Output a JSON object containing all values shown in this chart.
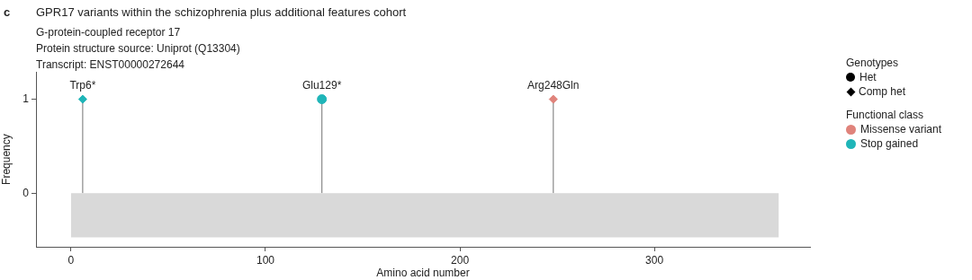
{
  "chart_data": {
    "type": "lollipop",
    "title": "GPR17 variants within the schizophrenia plus additional features cohort",
    "subtitle": "G-protein-coupled receptor 17\nProtein structure source: Uniprot (Q13304)\nTranscript: ENST00000272644",
    "xlabel": "Amino acid number",
    "ylabel": "Frequency",
    "legend_title": "Functional class",
    "legend": "right",
    "xlim": [
      -18,
      380
    ],
    "xticks": [
      0,
      100,
      200,
      300
    ],
    "ylim": [
      -0.57,
      1.29
    ],
    "yticks": [
      0,
      1
    ],
    "series": [
      {
        "type": "area",
        "color": "#d9d9d9",
        "x": [
          0,
          364
        ],
        "values": [
          -0.47,
          -0.47
        ]
      },
      {
        "name": "Missense variant",
        "color": "#e0837b",
        "marker": "diamond",
        "x": [
          248
        ],
        "values": [
          1
        ]
      },
      {
        "name": "Stop gained",
        "color": "#1fb5b8",
        "marker": "diamond",
        "x": [
          6
        ],
        "values": [
          1
        ]
      },
      {
        "color": "#1fb5b8",
        "marker": "circle",
        "x": [
          129
        ],
        "values": [
          1
        ]
      }
    ],
    "annotations": [
      "c",
      "Genotypes",
      "Het",
      "Comp het",
      {
        "text": "Trp6*",
        "x": 6,
        "y": 1
      },
      {
        "text": "Glu129*",
        "x": 129,
        "y": 1
      },
      {
        "text": "Arg248Gln",
        "x": 248,
        "y": 1
      }
    ]
  }
}
